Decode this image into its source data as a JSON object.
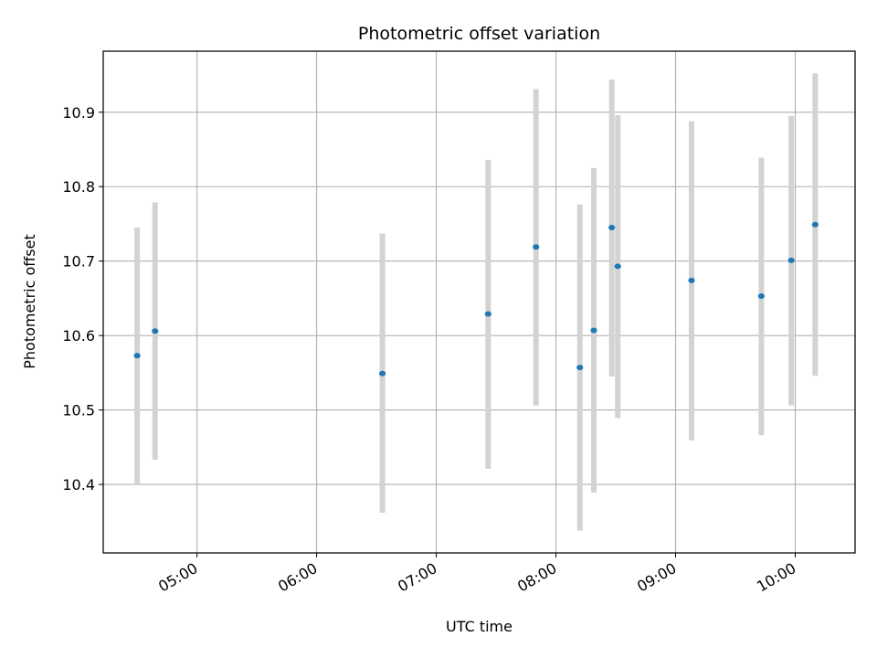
{
  "chart_data": {
    "type": "scatter",
    "title": "Photometric offset variation",
    "xlabel": "UTC time",
    "ylabel": "Photometric offset",
    "x_tick_labels": [
      "05:00",
      "06:00",
      "07:00",
      "08:00",
      "09:00",
      "10:00"
    ],
    "y_tick_labels": [
      "10.4",
      "10.5",
      "10.6",
      "10.7",
      "10.8",
      "10.9"
    ],
    "grid": true,
    "series": [
      {
        "points": [
          {
            "x": "04:30",
            "y": 10.573,
            "err_low": 10.4,
            "err_high": 10.745
          },
          {
            "x": "04:39",
            "y": 10.606,
            "err_low": 10.433,
            "err_high": 10.779
          },
          {
            "x": "06:33",
            "y": 10.549,
            "err_low": 10.362,
            "err_high": 10.737
          },
          {
            "x": "07:26",
            "y": 10.629,
            "err_low": 10.421,
            "err_high": 10.836
          },
          {
            "x": "07:50",
            "y": 10.719,
            "err_low": 10.506,
            "err_high": 10.931
          },
          {
            "x": "08:12",
            "y": 10.557,
            "err_low": 10.338,
            "err_high": 10.776
          },
          {
            "x": "08:19",
            "y": 10.607,
            "err_low": 10.389,
            "err_high": 10.825
          },
          {
            "x": "08:28",
            "y": 10.745,
            "err_low": 10.545,
            "err_high": 10.944
          },
          {
            "x": "08:31",
            "y": 10.693,
            "err_low": 10.489,
            "err_high": 10.896
          },
          {
            "x": "09:08",
            "y": 10.674,
            "err_low": 10.459,
            "err_high": 10.888
          },
          {
            "x": "09:43",
            "y": 10.653,
            "err_low": 10.466,
            "err_high": 10.839
          },
          {
            "x": "09:58",
            "y": 10.701,
            "err_low": 10.506,
            "err_high": 10.895
          },
          {
            "x": "10:10",
            "y": 10.749,
            "err_low": 10.546,
            "err_high": 10.952
          }
        ]
      }
    ],
    "colors": {
      "marker": "#1f77b4",
      "errorbar": "#d3d3d3",
      "grid": "#b0b0b0",
      "axes": "#000000"
    }
  }
}
